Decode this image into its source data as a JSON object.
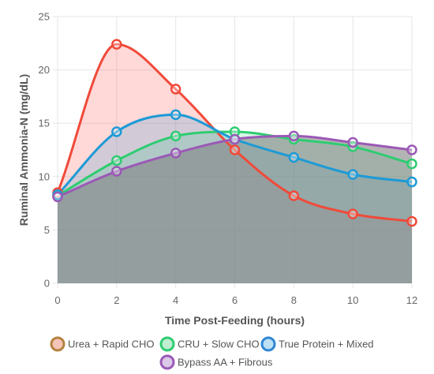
{
  "chart_data": {
    "type": "area",
    "title": "",
    "xlabel": "Time Post-Feeding (hours)",
    "ylabel": "Ruminal Ammonia-N (mg/dL)",
    "x": [
      0,
      2,
      4,
      6,
      8,
      10,
      12
    ],
    "xlim": [
      0,
      12
    ],
    "ylim": [
      0,
      25
    ],
    "yticks": [
      0,
      5,
      10,
      15,
      20,
      25
    ],
    "grid": true,
    "legend_position": "bottom",
    "series": [
      {
        "name": "Urea + Rapid CHO",
        "values": [
          8.5,
          22.4,
          18.2,
          12.5,
          8.2,
          6.5,
          5.8
        ],
        "color": "#f04a3a",
        "marker_color": "#f04a3a",
        "fill": "rgba(255,99,100,0.25)",
        "legend_border": "#b5813f",
        "legend_fill": "#f3c4b7"
      },
      {
        "name": "CRU + Slow CHO",
        "values": [
          8.2,
          11.5,
          13.8,
          14.2,
          13.5,
          12.8,
          11.2
        ],
        "color": "#2ecc71",
        "marker_color": "#2ecc71",
        "fill": "rgba(46,204,113,0.20)",
        "legend_border": "#2ecc71",
        "legend_fill": "#bfeed2"
      },
      {
        "name": "True Protein + Mixed",
        "values": [
          8.3,
          14.2,
          15.8,
          13.5,
          11.8,
          10.2,
          9.5
        ],
        "color": "#1d9ad6",
        "marker_color": "#1d9ad6",
        "fill": "rgba(29,154,214,0.20)",
        "legend_border": "#2f86d3",
        "legend_fill": "#bde0f3"
      },
      {
        "name": "Bypass AA + Fibrous",
        "values": [
          8.1,
          10.5,
          12.2,
          13.5,
          13.8,
          13.2,
          12.5
        ],
        "color": "#9b59b6",
        "marker_color": "#9b59b6",
        "fill": "rgba(130,130,130,0.60)",
        "legend_border": "#9b59b6",
        "legend_fill": "#dcc8e8"
      }
    ]
  }
}
